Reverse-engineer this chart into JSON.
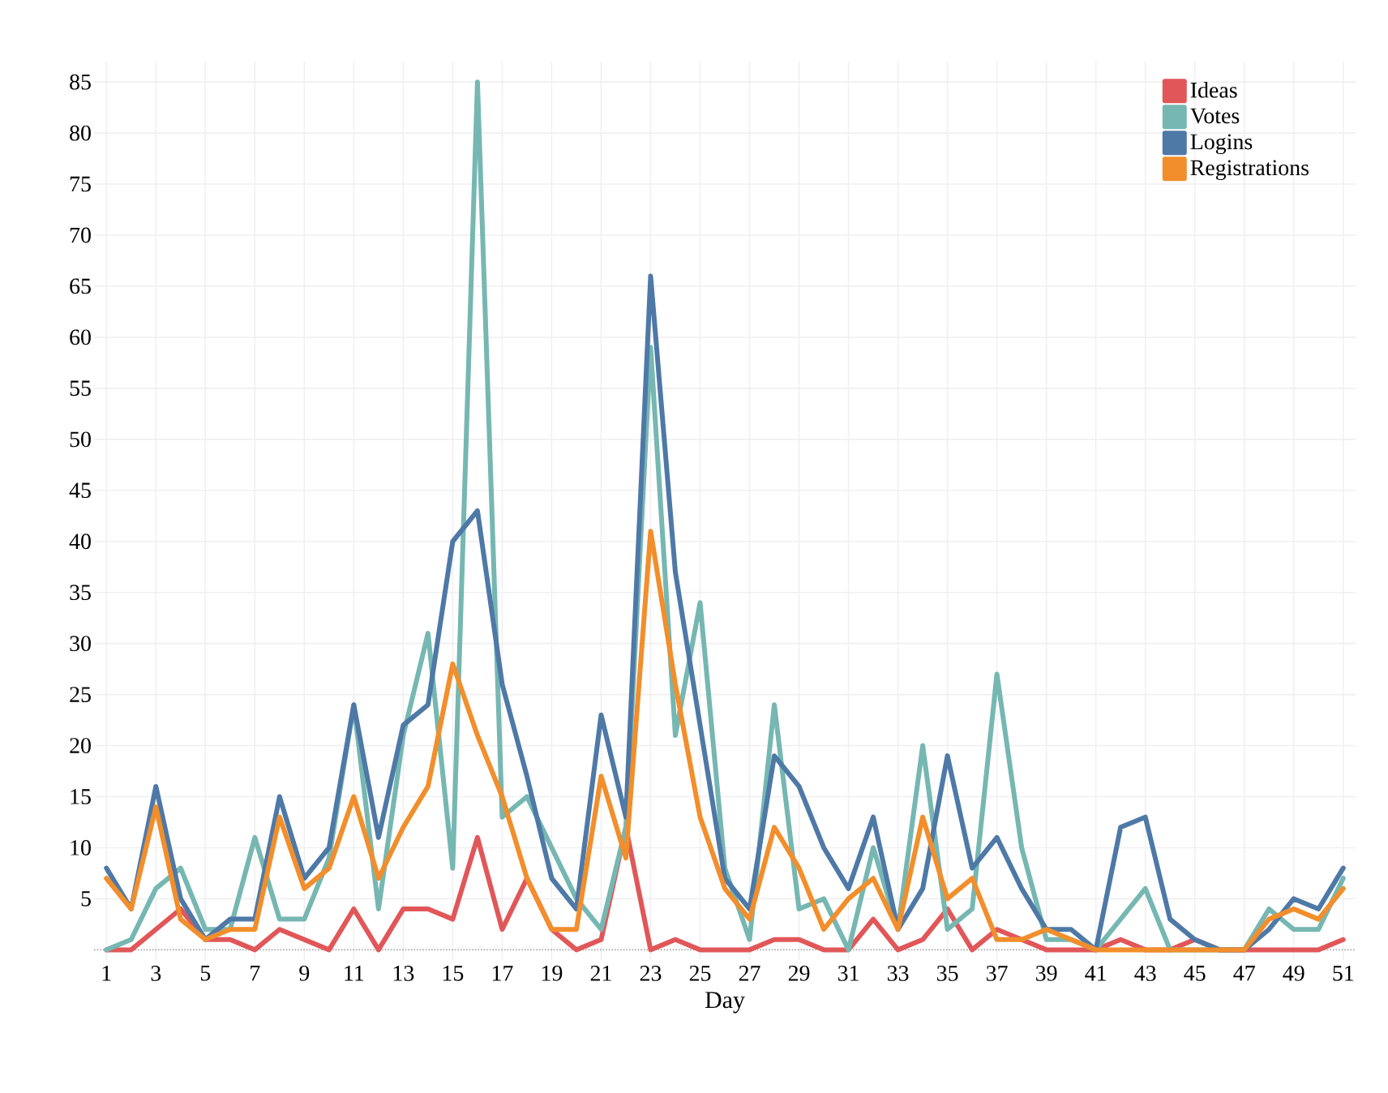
{
  "chart_data": {
    "type": "line",
    "xlabel": "Day",
    "x": [
      1,
      2,
      3,
      4,
      5,
      6,
      7,
      8,
      9,
      10,
      11,
      12,
      13,
      14,
      15,
      16,
      17,
      18,
      19,
      20,
      21,
      22,
      23,
      24,
      25,
      26,
      27,
      28,
      29,
      30,
      31,
      32,
      33,
      34,
      35,
      36,
      37,
      38,
      39,
      40,
      41,
      42,
      43,
      44,
      45,
      46,
      47,
      48,
      49,
      50,
      51
    ],
    "series": [
      {
        "name": "Ideas",
        "color": "#e15759",
        "values": [
          0,
          0,
          2,
          4,
          1,
          1,
          0,
          2,
          1,
          0,
          4,
          0,
          4,
          4,
          3,
          11,
          2,
          7,
          2,
          0,
          1,
          12,
          0,
          1,
          0,
          0,
          0,
          1,
          1,
          0,
          0,
          3,
          0,
          1,
          4,
          0,
          2,
          1,
          0,
          0,
          0,
          1,
          0,
          0,
          1,
          0,
          0,
          0,
          0,
          0,
          1
        ]
      },
      {
        "name": "Votes",
        "color": "#76b7b2",
        "values": [
          0,
          1,
          6,
          8,
          2,
          2,
          11,
          3,
          3,
          9,
          24,
          4,
          21,
          31,
          8,
          85,
          13,
          15,
          10,
          5,
          2,
          12,
          59,
          21,
          34,
          8,
          1,
          24,
          4,
          5,
          0,
          10,
          2,
          20,
          2,
          4,
          27,
          10,
          1,
          1,
          0,
          3,
          6,
          0,
          0,
          0,
          0,
          4,
          2,
          2,
          7
        ]
      },
      {
        "name": "Logins",
        "color": "#4e79a7",
        "values": [
          8,
          4,
          16,
          5,
          1,
          3,
          3,
          15,
          7,
          10,
          24,
          11,
          22,
          24,
          40,
          43,
          26,
          17,
          7,
          4,
          23,
          13,
          66,
          37,
          22,
          7,
          4,
          19,
          16,
          10,
          6,
          13,
          2,
          6,
          19,
          8,
          11,
          6,
          2,
          2,
          0,
          12,
          13,
          3,
          1,
          0,
          0,
          2,
          5,
          4,
          8
        ]
      },
      {
        "name": "Registrations",
        "color": "#f28e2b",
        "values": [
          7,
          4,
          14,
          3,
          1,
          2,
          2,
          13,
          6,
          8,
          15,
          7,
          12,
          16,
          28,
          21,
          15,
          7,
          2,
          2,
          17,
          9,
          41,
          26,
          13,
          6,
          3,
          12,
          8,
          2,
          5,
          7,
          2,
          13,
          5,
          7,
          1,
          1,
          2,
          1,
          0,
          0,
          0,
          0,
          0,
          0,
          0,
          3,
          4,
          3,
          6
        ]
      }
    ],
    "xlim": [
      0.5,
      51.5
    ],
    "ylim": [
      -1,
      87
    ],
    "xticks": [
      1,
      3,
      5,
      7,
      9,
      11,
      13,
      15,
      17,
      19,
      21,
      23,
      25,
      27,
      29,
      31,
      33,
      35,
      37,
      39,
      41,
      43,
      45,
      47,
      49,
      51
    ],
    "yticks": [
      5,
      10,
      15,
      20,
      25,
      30,
      35,
      40,
      45,
      50,
      55,
      60,
      65,
      70,
      75,
      80,
      85
    ],
    "ref_lines": [
      {
        "axis": "y",
        "value": 0,
        "color": "#a6a6a6",
        "line_style": "dotted"
      }
    ],
    "grid": true,
    "legend": "top right",
    "marker": "none",
    "line_style": "solid"
  }
}
